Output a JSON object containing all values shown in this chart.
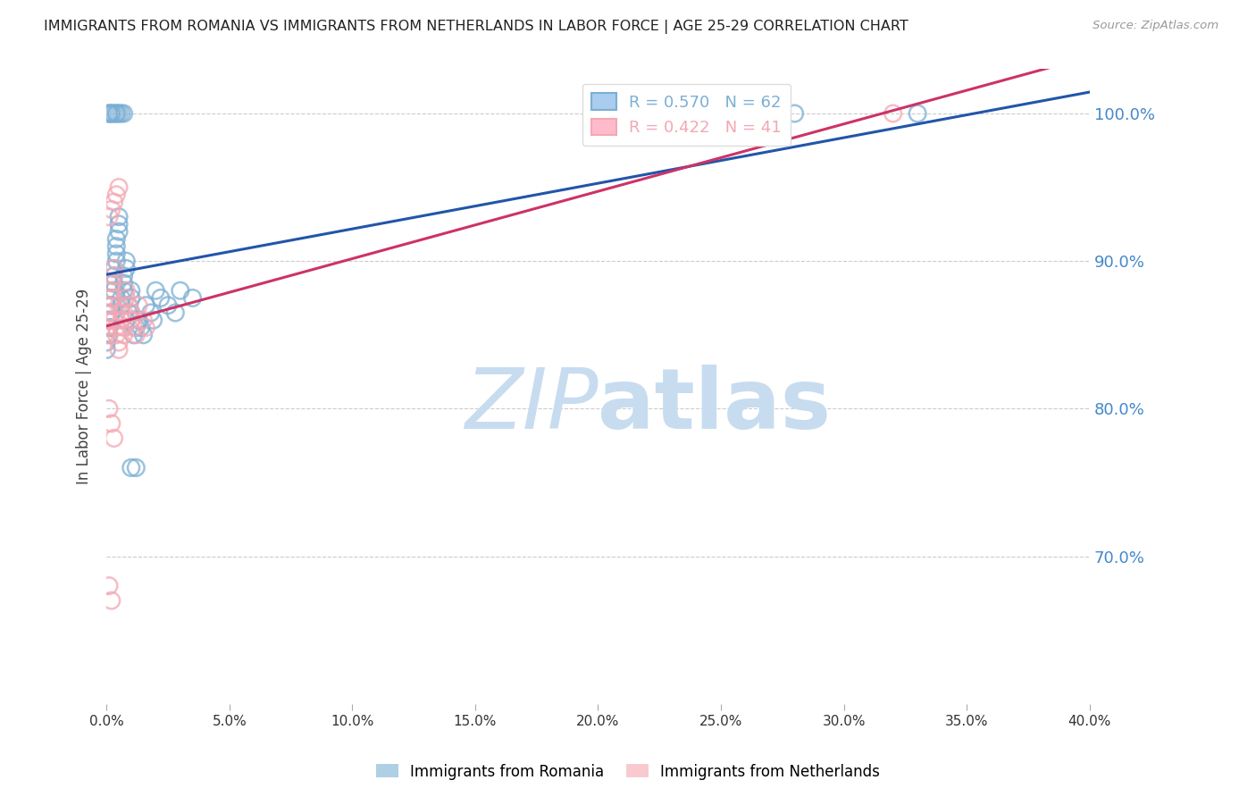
{
  "title": "IMMIGRANTS FROM ROMANIA VS IMMIGRANTS FROM NETHERLANDS IN LABOR FORCE | AGE 25-29 CORRELATION CHART",
  "source": "Source: ZipAtlas.com",
  "ylabel": "In Labor Force | Age 25-29",
  "xlabel": "",
  "r_romania": 0.57,
  "n_romania": 62,
  "r_netherlands": 0.422,
  "n_netherlands": 41,
  "color_romania": "#7BAFD4",
  "color_netherlands": "#F4A7B2",
  "line_color_romania": "#2255AA",
  "line_color_netherlands": "#CC3366",
  "xmin": 0.0,
  "xmax": 0.4,
  "ymin": 0.6,
  "ymax": 1.03,
  "romania_x": [
    0.0,
    0.0,
    0.001,
    0.001,
    0.001,
    0.001,
    0.001,
    0.002,
    0.002,
    0.002,
    0.002,
    0.003,
    0.003,
    0.003,
    0.003,
    0.004,
    0.004,
    0.004,
    0.004,
    0.005,
    0.005,
    0.005,
    0.006,
    0.006,
    0.007,
    0.007,
    0.007,
    0.008,
    0.008,
    0.008,
    0.009,
    0.009,
    0.01,
    0.01,
    0.011,
    0.012,
    0.013,
    0.014,
    0.015,
    0.016,
    0.018,
    0.019,
    0.02,
    0.022,
    0.025,
    0.028,
    0.03,
    0.035,
    0.001,
    0.001,
    0.002,
    0.002,
    0.003,
    0.004,
    0.004,
    0.005,
    0.006,
    0.007,
    0.01,
    0.012,
    0.28,
    0.33
  ],
  "romania_y": [
    0.84,
    0.845,
    0.85,
    0.855,
    0.855,
    0.86,
    0.86,
    0.865,
    0.87,
    0.87,
    0.875,
    0.88,
    0.885,
    0.89,
    0.895,
    0.9,
    0.905,
    0.91,
    0.915,
    0.92,
    0.925,
    0.93,
    0.87,
    0.875,
    0.88,
    0.885,
    0.89,
    0.895,
    0.9,
    0.86,
    0.865,
    0.87,
    0.875,
    0.88,
    0.85,
    0.855,
    0.86,
    0.855,
    0.85,
    0.87,
    0.865,
    0.86,
    0.88,
    0.875,
    0.87,
    0.865,
    0.88,
    0.875,
    1.0,
    1.0,
    1.0,
    1.0,
    1.0,
    1.0,
    1.0,
    1.0,
    1.0,
    1.0,
    0.76,
    0.76,
    1.0,
    1.0
  ],
  "netherlands_x": [
    0.0,
    0.0,
    0.001,
    0.001,
    0.001,
    0.002,
    0.002,
    0.002,
    0.003,
    0.003,
    0.003,
    0.004,
    0.004,
    0.005,
    0.005,
    0.005,
    0.006,
    0.006,
    0.007,
    0.007,
    0.008,
    0.008,
    0.009,
    0.01,
    0.01,
    0.011,
    0.012,
    0.013,
    0.015,
    0.016,
    0.001,
    0.002,
    0.003,
    0.004,
    0.005,
    0.001,
    0.002,
    0.003,
    0.001,
    0.002,
    0.32
  ],
  "netherlands_y": [
    0.85,
    0.855,
    0.86,
    0.865,
    0.87,
    0.875,
    0.88,
    0.885,
    0.89,
    0.895,
    0.86,
    0.855,
    0.85,
    0.845,
    0.84,
    0.87,
    0.865,
    0.86,
    0.855,
    0.85,
    0.88,
    0.875,
    0.87,
    0.865,
    0.86,
    0.855,
    0.85,
    0.87,
    0.86,
    0.855,
    0.93,
    0.935,
    0.94,
    0.945,
    0.95,
    0.8,
    0.79,
    0.78,
    0.68,
    0.67,
    1.0
  ],
  "yticks": [
    0.7,
    0.8,
    0.9,
    1.0
  ],
  "ytick_labels_right": [
    "70.0%",
    "80.0%",
    "90.0%",
    "100.0%"
  ],
  "xticks": [
    0.0,
    0.05,
    0.1,
    0.15,
    0.2,
    0.25,
    0.3,
    0.35,
    0.4
  ],
  "xtick_labels": [
    "0.0%",
    "5.0%",
    "10.0%",
    "15.0%",
    "20.0%",
    "25.0%",
    "30.0%",
    "35.0%",
    "40.0%"
  ],
  "grid_color": "#CCCCCC",
  "background_color": "#FFFFFF",
  "watermark_zip": "ZIP",
  "watermark_atlas": "atlas",
  "watermark_color_zip": "#C8DCF0",
  "watermark_color_atlas": "#C8DCF0"
}
